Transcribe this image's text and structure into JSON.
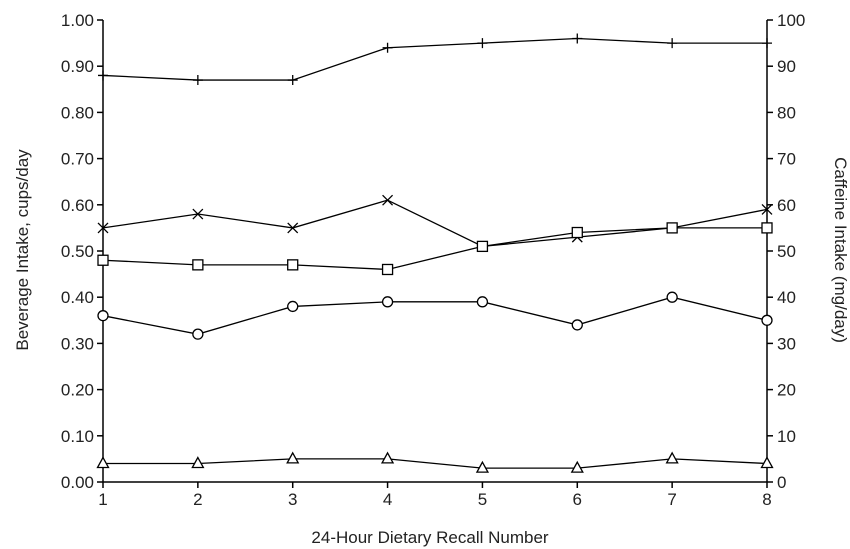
{
  "chart_data": {
    "type": "line",
    "title": "",
    "xlabel": "24-Hour Dietary Recall Number",
    "ylabel": "Beverage Intake, cups/day",
    "y2label": "Caffeine Intake (mg/day)",
    "x": [
      1,
      2,
      3,
      4,
      5,
      6,
      7,
      8
    ],
    "xlim": [
      1,
      8
    ],
    "ylim": [
      0,
      1
    ],
    "y2lim": [
      0,
      100
    ],
    "y_ticks": [
      "0.00",
      "0.10",
      "0.20",
      "0.30",
      "0.40",
      "0.50",
      "0.60",
      "0.70",
      "0.80",
      "0.90",
      "1.00"
    ],
    "y2_ticks": [
      "0",
      "10",
      "20",
      "30",
      "40",
      "50",
      "60",
      "70",
      "80",
      "90",
      "100"
    ],
    "x_ticks": [
      "1",
      "2",
      "3",
      "4",
      "5",
      "6",
      "7",
      "8"
    ],
    "grid": false,
    "legend": "none",
    "series": [
      {
        "marker": "plus",
        "axis": "left",
        "values": [
          0.88,
          0.87,
          0.87,
          0.94,
          0.95,
          0.96,
          0.95,
          0.95
        ]
      },
      {
        "marker": "x",
        "axis": "left",
        "values": [
          0.55,
          0.58,
          0.55,
          0.61,
          0.51,
          0.53,
          0.55,
          0.59
        ]
      },
      {
        "marker": "square",
        "axis": "left",
        "values": [
          0.48,
          0.47,
          0.47,
          0.46,
          0.51,
          0.54,
          0.55,
          0.55
        ]
      },
      {
        "marker": "circle",
        "axis": "left",
        "values": [
          0.36,
          0.32,
          0.38,
          0.39,
          0.39,
          0.34,
          0.4,
          0.35
        ]
      },
      {
        "marker": "triangle",
        "axis": "left",
        "values": [
          0.04,
          0.04,
          0.05,
          0.05,
          0.03,
          0.03,
          0.05,
          0.04
        ]
      }
    ],
    "colors": {
      "line": "#000000",
      "marker_fill": "#ffffff"
    }
  }
}
